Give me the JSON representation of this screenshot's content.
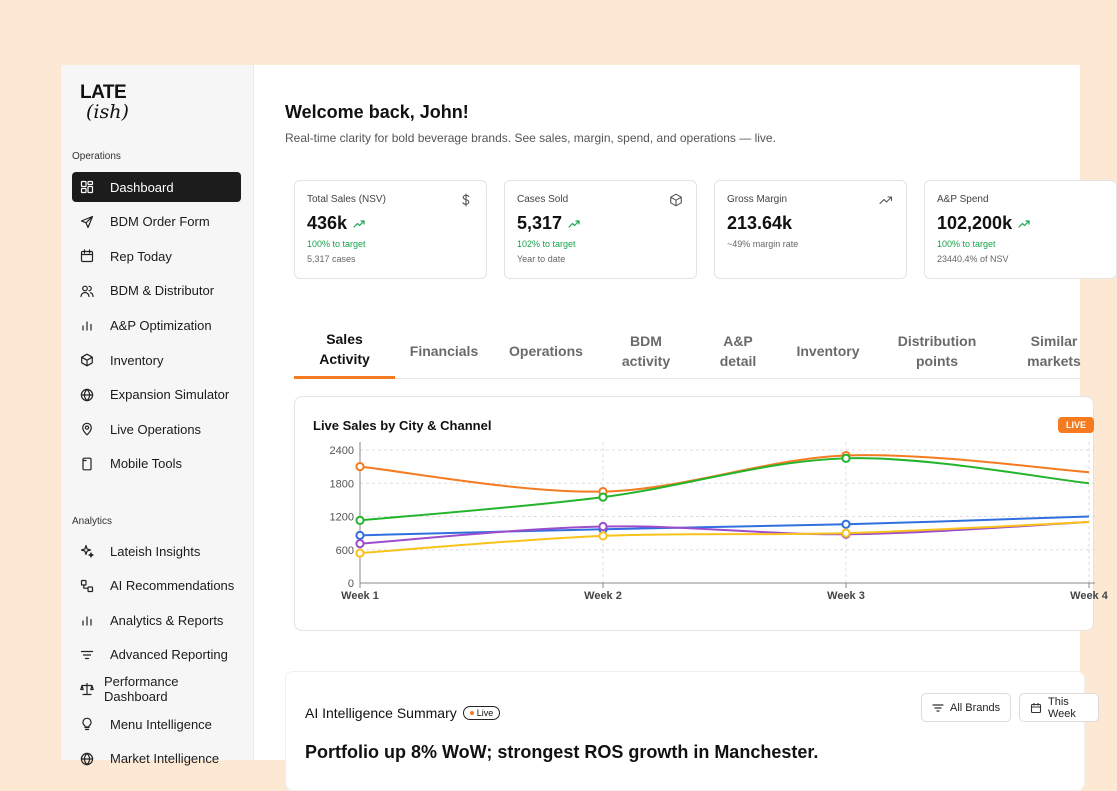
{
  "logo": {
    "line1": "LATE",
    "line2": "(ish)"
  },
  "sidebar": {
    "operations_label": "Operations",
    "analytics_label": "Analytics",
    "operations": [
      {
        "label": "Dashboard",
        "icon": "grid-icon",
        "active": true
      },
      {
        "label": "BDM Order Form",
        "icon": "send-icon"
      },
      {
        "label": "Rep Today",
        "icon": "calendar-icon"
      },
      {
        "label": "BDM & Distributor",
        "icon": "users-icon"
      },
      {
        "label": "A&P Optimization",
        "icon": "bar-chart-icon"
      },
      {
        "label": "Inventory",
        "icon": "box-icon"
      },
      {
        "label": "Expansion Simulator",
        "icon": "globe-icon"
      },
      {
        "label": "Live Operations",
        "icon": "map-pin-icon"
      },
      {
        "label": "Mobile Tools",
        "icon": "mobile-icon"
      }
    ],
    "analytics": [
      {
        "label": "Lateish Insights",
        "icon": "sparkles-icon"
      },
      {
        "label": "AI Recommendations",
        "icon": "workflow-icon"
      },
      {
        "label": "Analytics & Reports",
        "icon": "bar-chart-icon"
      },
      {
        "label": "Advanced Reporting",
        "icon": "filter-icon"
      },
      {
        "label": "Performance Dashboard",
        "icon": "scale-icon"
      },
      {
        "label": "Menu Intelligence",
        "icon": "lightbulb-icon"
      },
      {
        "label": "Market Intelligence",
        "icon": "globe-icon"
      }
    ]
  },
  "header": {
    "title": "Welcome back, John!",
    "subtitle": "Real-time clarity for bold beverage brands. See sales, margin, spend, and operations — live."
  },
  "kpis": [
    {
      "label": "Total Sales (NSV)",
      "value": "436k",
      "target": "100% to target",
      "sub": "5,317 cases",
      "icon": "dollar-icon",
      "trend": true
    },
    {
      "label": "Cases Sold",
      "value": "5,317",
      "target": "102% to target",
      "sub": "Year to date",
      "icon": "box-icon",
      "trend": true
    },
    {
      "label": "Gross Margin",
      "value": "213.64k",
      "target": "~49% margin rate",
      "sub": "",
      "icon": "trend-up-icon",
      "trend": false
    },
    {
      "label": "A&P Spend",
      "value": "102,200k",
      "target": "100% to target",
      "sub": "23440.4% of NSV",
      "icon": "",
      "trend": true
    }
  ],
  "tabs": [
    {
      "line1": "Sales",
      "line2": "Activity",
      "active": true
    },
    {
      "line1": "Financials",
      "line2": ""
    },
    {
      "line1": "Operations",
      "line2": ""
    },
    {
      "line1": "BDM",
      "line2": "activity"
    },
    {
      "line1": "A&P",
      "line2": "detail"
    },
    {
      "line1": "Inventory",
      "line2": ""
    },
    {
      "line1": "Distribution",
      "line2": "points"
    },
    {
      "line1": "Similar",
      "line2": "markets"
    }
  ],
  "chart_card": {
    "title": "Live Sales by City & Channel",
    "badge": "LIVE"
  },
  "chart_data": {
    "type": "line",
    "title": "Live Sales by City & Channel",
    "x": [
      "Week 1",
      "Week 2",
      "Week 3",
      "Week 4"
    ],
    "ylim": [
      0,
      2400
    ],
    "yticks": [
      0,
      600,
      1200,
      1800,
      2400
    ],
    "grid": true,
    "series": [
      {
        "color": "#f47b20",
        "values": [
          2100,
          1650,
          2300,
          2000
        ]
      },
      {
        "color": "#22b52b",
        "values": [
          1130,
          1550,
          2250,
          1800
        ]
      },
      {
        "color": "#2f6fe0",
        "values": [
          860,
          970,
          1060,
          1200
        ]
      },
      {
        "color": "#9b4dcc",
        "values": [
          710,
          1020,
          880,
          1100
        ]
      },
      {
        "color": "#f9c21b",
        "values": [
          540,
          850,
          900,
          1100
        ]
      }
    ]
  },
  "ai_summary": {
    "title": "AI Intelligence Summary",
    "live": "Live",
    "brands_filter": "All Brands",
    "date_filter": "This Week",
    "headline": "Portfolio up 8% WoW; strongest ROS growth in Manchester."
  }
}
